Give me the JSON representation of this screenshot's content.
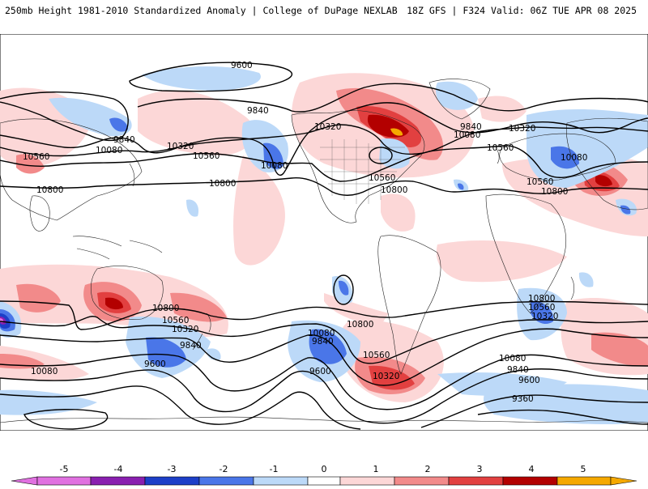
{
  "header": {
    "title": "250mb Height 1981-2010 Standardized Anomaly | College of DuPage NEXLAB",
    "run_info": "18Z GFS | F324 Valid: 06Z TUE APR 08 2025"
  },
  "colors": {
    "neg5": "#e070e0",
    "neg4": "#8a1fb0",
    "neg3": "#1d3fc8",
    "neg2": "#4a76e8",
    "neg1": "#bcd9f8",
    "zero": "#ffffff",
    "pos1": "#fcd7d7",
    "pos2": "#f28a8a",
    "pos3": "#e24040",
    "pos4": "#b30000",
    "pos5": "#f5a800"
  },
  "colorbar": {
    "ticks": [
      "-5",
      "-4",
      "-3",
      "-2",
      "-1",
      "0",
      "1",
      "2",
      "3",
      "4",
      "5"
    ]
  },
  "contour_labels": {
    "l9600_top": "9600",
    "l9840_np": "9840",
    "l10080_asia": "10080",
    "l10560_asia": "10560",
    "l9840_pac": "9840",
    "l10320_pac": "10320",
    "l10560_pac": "10560",
    "l10080_pac": "10080",
    "l10800_w": "10800",
    "l10800_pac": "10800",
    "l10320_na": "10320",
    "l10560_na": "10560",
    "l10800_na": "10800",
    "l9840_atl": "9840",
    "l10080_atl": "10080",
    "l10320_atl": "10320",
    "l10560_atl": "10560",
    "l10080_eu": "10080",
    "l10560_eu": "10560",
    "l10800_eu": "10800",
    "l10800_sp": "10800",
    "l10560_sp": "10560",
    "l10320_sp": "10320",
    "l9840_sp": "9840",
    "l9600_sp": "9600",
    "l10080_sw": "10080",
    "l10080_sa": "10080",
    "l9840_sa": "9840",
    "l10800_sa": "10800",
    "l10560_sa": "10560",
    "l10320_sa": "10320",
    "l9600_sa": "9600",
    "l10800_si": "10800",
    "l10560_si": "10560",
    "l10320_si": "10320",
    "l10080_si": "10080",
    "l9840_si": "9840",
    "l9600_si": "9600",
    "l9360_si": "9360"
  }
}
